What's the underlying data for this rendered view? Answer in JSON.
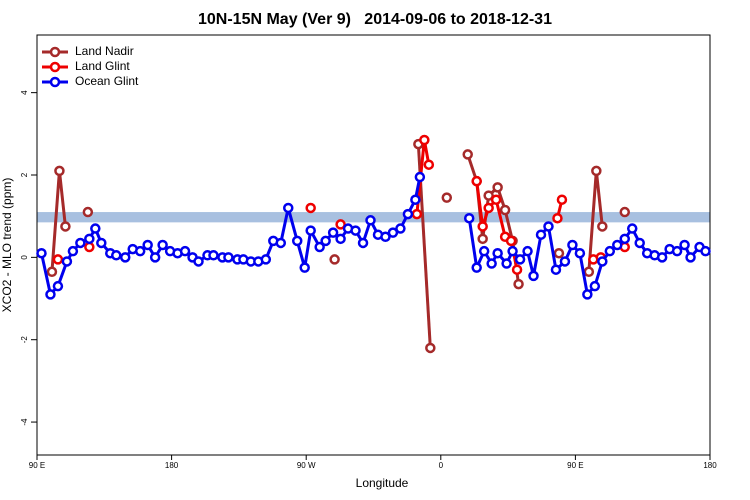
{
  "chart_data": {
    "type": "line",
    "title": "10N-15N May (Ver 9)   2014-09-06 to 2018-12-31",
    "x_label": "Longitude",
    "y_label": "XCO2 - MLO trend (ppm)",
    "xlim": [
      90,
      540
    ],
    "xticks": [
      {
        "value": 90,
        "label": "90 E"
      },
      180,
      {
        "value": 270,
        "label": "90 W"
      },
      {
        "value": 360,
        "label": "0"
      },
      {
        "value": 450,
        "label": "90 E"
      },
      {
        "value": 540,
        "label": "180"
      }
    ],
    "ylim": [
      -4.8,
      5.4
    ],
    "yticks": [
      -4,
      -2,
      0,
      2,
      4
    ],
    "band_range": [
      0.85,
      1.1
    ],
    "band_color": "#a8c0e0",
    "legend": "top-left",
    "series": [
      {
        "name": "Land Nadir",
        "color": "#a52a2a",
        "x": [
          100,
          105,
          109,
          115,
          124,
          200,
          289,
          320,
          345,
          353,
          358,
          364,
          370,
          378,
          384,
          388,
          392,
          398,
          403,
          408,
          412,
          425,
          439,
          450,
          459,
          464,
          468,
          475,
          483
        ],
        "values": [
          -0.35,
          2.1,
          0.75,
          null,
          1.1,
          null,
          -0.05,
          null,
          2.75,
          -2.2,
          null,
          1.45,
          null,
          2.5,
          1.85,
          0.45,
          1.5,
          1.7,
          1.15,
          0.4,
          -0.65,
          null,
          0.1,
          null,
          -0.35,
          2.1,
          0.75,
          null,
          1.1
        ]
      },
      {
        "name": "Land Glint",
        "color": "#ee0000",
        "x": [
          104,
          115,
          125,
          200,
          273,
          283,
          293,
          320,
          344,
          349,
          352,
          370,
          384,
          388,
          392,
          397,
          403,
          407,
          411,
          425,
          438,
          441,
          450,
          462,
          467,
          475,
          483
        ],
        "values": [
          -0.05,
          null,
          0.25,
          null,
          1.2,
          null,
          0.8,
          null,
          1.05,
          2.85,
          2.25,
          null,
          1.85,
          0.75,
          1.2,
          1.4,
          0.5,
          0.4,
          -0.3,
          null,
          0.95,
          1.4,
          null,
          -0.05,
          0.0,
          null,
          0.25
        ]
      },
      {
        "name": "Ocean Glint",
        "color": "#0000ee",
        "x": [
          93,
          99,
          104,
          110,
          114,
          119,
          125,
          129,
          133,
          139,
          143,
          149,
          154,
          159,
          164,
          169,
          174,
          179,
          184,
          189,
          194,
          198,
          204,
          208,
          214,
          218,
          224,
          228,
          233,
          238,
          243,
          248,
          253,
          258,
          264,
          269,
          273,
          279,
          283,
          288,
          293,
          298,
          303,
          308,
          313,
          318,
          323,
          328,
          333,
          338,
          343,
          346,
          360,
          379,
          384,
          389,
          394,
          398,
          404,
          408,
          413,
          418,
          422,
          427,
          432,
          437,
          443,
          448,
          453,
          458,
          463,
          468,
          473,
          478,
          483,
          488,
          493,
          498,
          503,
          508,
          513,
          518,
          523,
          527,
          533,
          537
        ],
        "values": [
          0.1,
          -0.9,
          -0.7,
          -0.1,
          0.15,
          0.35,
          0.45,
          0.7,
          0.35,
          0.1,
          0.05,
          0.0,
          0.2,
          0.15,
          0.3,
          0.0,
          0.3,
          0.15,
          0.1,
          0.15,
          0.0,
          -0.1,
          0.05,
          0.05,
          0.0,
          0.0,
          -0.05,
          -0.05,
          -0.1,
          -0.1,
          -0.05,
          0.4,
          0.35,
          1.2,
          0.4,
          -0.25,
          0.65,
          0.25,
          0.4,
          0.6,
          0.45,
          0.7,
          0.65,
          0.35,
          0.9,
          0.55,
          0.5,
          0.6,
          0.7,
          1.05,
          1.4,
          1.95,
          null,
          0.95,
          -0.25,
          0.15,
          -0.15,
          0.1,
          -0.15,
          0.15,
          -0.05,
          0.15,
          -0.45,
          0.55,
          0.75,
          -0.3,
          -0.1,
          0.3,
          0.1,
          -0.9,
          -0.7,
          -0.1,
          0.15,
          0.3,
          0.45,
          0.7,
          0.35,
          0.1,
          0.05,
          0.0,
          0.2,
          0.15,
          0.3,
          0.0,
          0.25,
          0.15
        ]
      }
    ]
  }
}
